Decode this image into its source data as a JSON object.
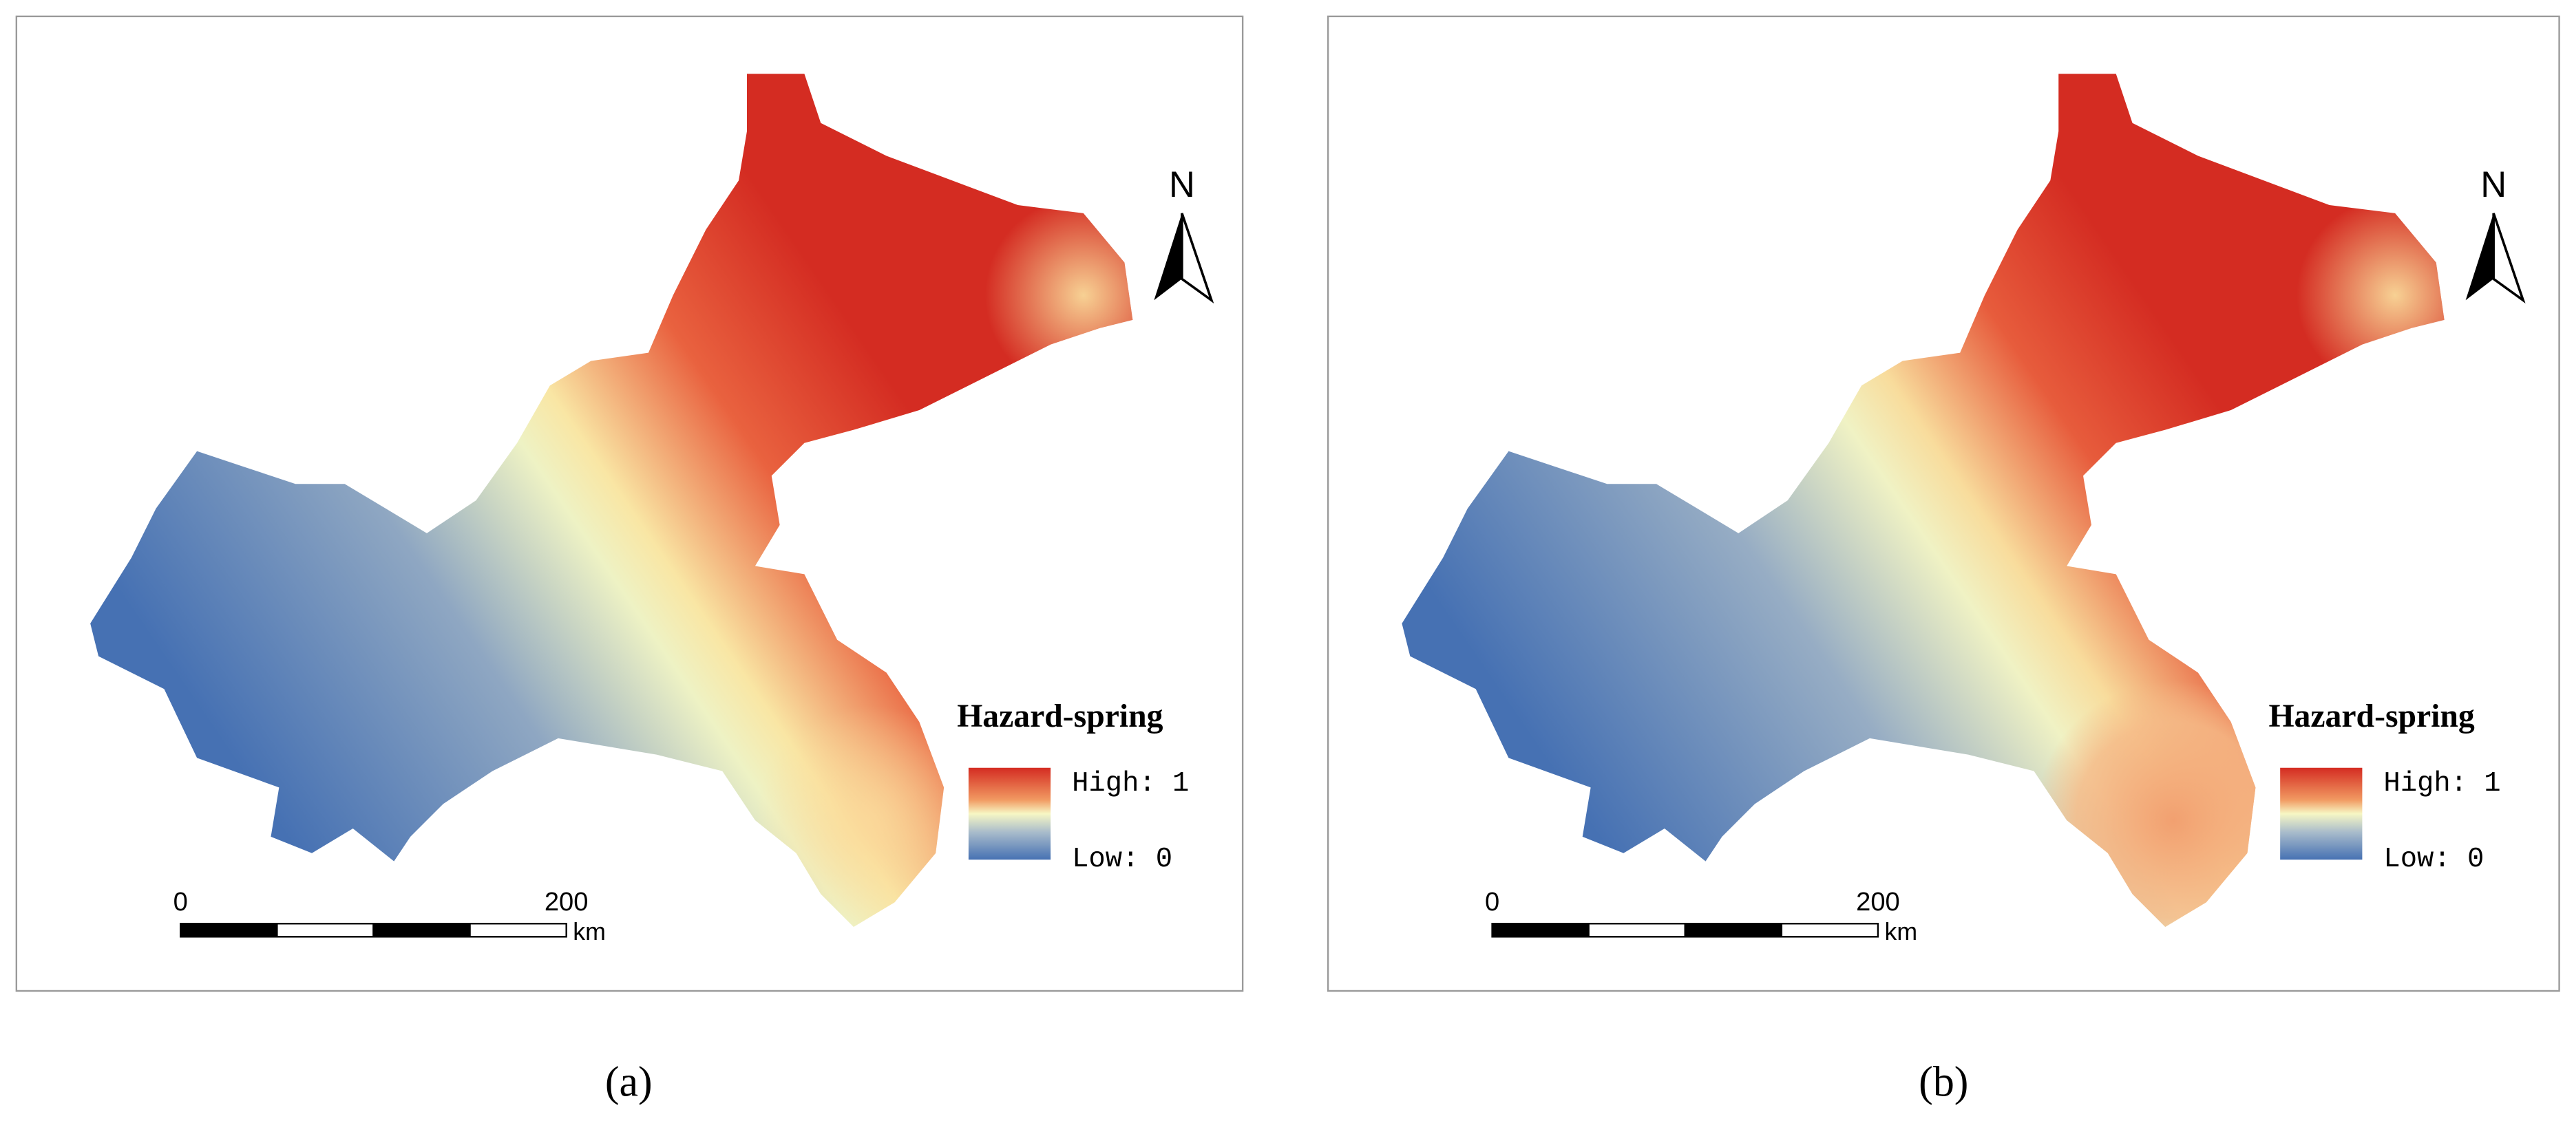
{
  "panels": [
    {
      "caption": "(a)",
      "north": "N",
      "legend_title": "Hazard-spring",
      "legend_high": "High: 1",
      "legend_low": "Low: 0",
      "scale_labels": [
        "0",
        "200"
      ],
      "scale_unit": "km"
    },
    {
      "caption": "(b)",
      "north": "N",
      "legend_title": "Hazard-spring",
      "legend_high": "High: 1",
      "legend_low": "Low: 0",
      "scale_labels": [
        "0",
        "200"
      ],
      "scale_unit": "km"
    }
  ]
}
